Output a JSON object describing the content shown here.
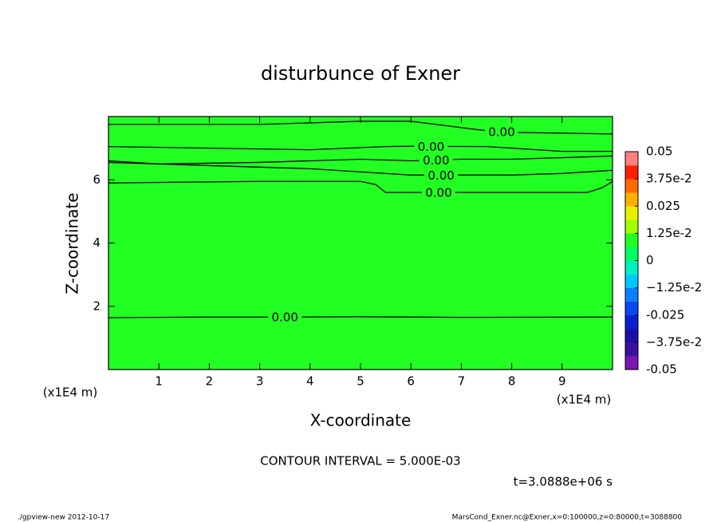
{
  "chart_data": {
    "type": "contour",
    "title": "disturbunce of Exner",
    "x_label": "X-coordinate",
    "y_label": "Z-coordinate",
    "x_unit": "(x1E4 m)",
    "y_unit": "(x1E4 m)",
    "xlim": [
      0,
      10
    ],
    "ylim": [
      0,
      8
    ],
    "xticks": [
      1,
      2,
      3,
      4,
      5,
      6,
      7,
      8,
      9
    ],
    "yticks": [
      2,
      4,
      6
    ],
    "fill_color": "#22ff22",
    "contours": [
      {
        "label": "0.00",
        "label_x": 3.5,
        "x": [
          0,
          2,
          3.5,
          5,
          7,
          10
        ],
        "y": [
          1.64,
          1.66,
          1.66,
          1.67,
          1.65,
          1.66
        ]
      },
      {
        "label": "0.00",
        "label_x": 6.55,
        "x": [
          0,
          3,
          5,
          5.3,
          5.5,
          7,
          9.5,
          9.8,
          10
        ],
        "y": [
          5.9,
          5.95,
          5.95,
          5.85,
          5.6,
          5.6,
          5.6,
          5.75,
          5.95
        ]
      },
      {
        "label": "0.00",
        "label_x": 6.6,
        "x": [
          0,
          2,
          4,
          5,
          6,
          8,
          9,
          10
        ],
        "y": [
          6.55,
          6.45,
          6.35,
          6.25,
          6.15,
          6.15,
          6.2,
          6.3
        ]
      },
      {
        "label": "0.00",
        "label_x": 6.5,
        "x": [
          0,
          1,
          3,
          5,
          6,
          7,
          8,
          10
        ],
        "y": [
          6.6,
          6.5,
          6.55,
          6.65,
          6.6,
          6.65,
          6.65,
          6.75
        ]
      },
      {
        "label": "0.00",
        "label_x": 6.4,
        "x": [
          0,
          2,
          4,
          5.5,
          6,
          7.5,
          9,
          10
        ],
        "y": [
          7.05,
          7.0,
          6.95,
          7.05,
          7.06,
          7.05,
          6.9,
          6.9
        ]
      },
      {
        "label": "0.00",
        "label_x": 7.8,
        "x": [
          0,
          3,
          5,
          6,
          7,
          7.5,
          8,
          10
        ],
        "y": [
          7.75,
          7.75,
          7.85,
          7.85,
          7.65,
          7.55,
          7.5,
          7.45
        ]
      }
    ],
    "colorbar": {
      "lim": [
        -0.05,
        0.05
      ],
      "ticks": [
        -0.05,
        {
          "value": -0.0375,
          "label": "−3.75e-2"
        },
        -0.025,
        {
          "value": -0.0125,
          "label": "−1.25e-2"
        },
        0,
        {
          "value": 0.0125,
          "label": "1.25e-2"
        },
        0.025,
        {
          "value": 0.0375,
          "label": "3.75e-2"
        },
        0.05
      ],
      "colors": [
        "#7a16b0",
        "#3a10a0",
        "#1a10a8",
        "#0a20d0",
        "#0a48f0",
        "#0a80ff",
        "#00c8ff",
        "#00f0c0",
        "#00ff60",
        "#22ff22",
        "#a0ff00",
        "#e8f000",
        "#ffb000",
        "#ff6a00",
        "#ff2000",
        "#ff8080"
      ]
    },
    "annotation": "CONTOUR INTERVAL = 5.000E-03",
    "time_label": "t=3.0888e+06 s",
    "footer_left": "./gpview-new  2012-10-17",
    "footer_right": "MarsCond_Exner.nc@Exner,x=0:100000,z=0:80000,t=3088800"
  }
}
